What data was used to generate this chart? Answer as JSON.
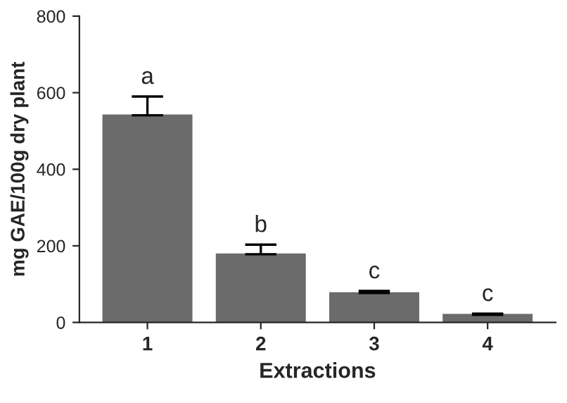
{
  "chart_data": {
    "type": "bar",
    "xlabel": "Extractions",
    "ylabel": "mg GAE/100g dry plant",
    "categories": [
      "1",
      "2",
      "3",
      "4"
    ],
    "values": [
      541,
      178,
      77,
      20
    ],
    "errors": [
      [
        541,
        590
      ],
      [
        178,
        203
      ],
      [
        77,
        82
      ],
      [
        20,
        23
      ]
    ],
    "color": "#6b6b6b",
    "ylim": [
      0,
      800
    ],
    "yticks": [
      0,
      200,
      400,
      600,
      800
    ],
    "grid": false,
    "legend": false,
    "annotations": [
      {
        "text": "a",
        "x": "1",
        "y": 590
      },
      {
        "text": "b",
        "x": "2",
        "y": 203
      },
      {
        "text": "c",
        "x": "3",
        "y": 82
      },
      {
        "text": "c",
        "x": "4",
        "y": 23
      }
    ]
  }
}
